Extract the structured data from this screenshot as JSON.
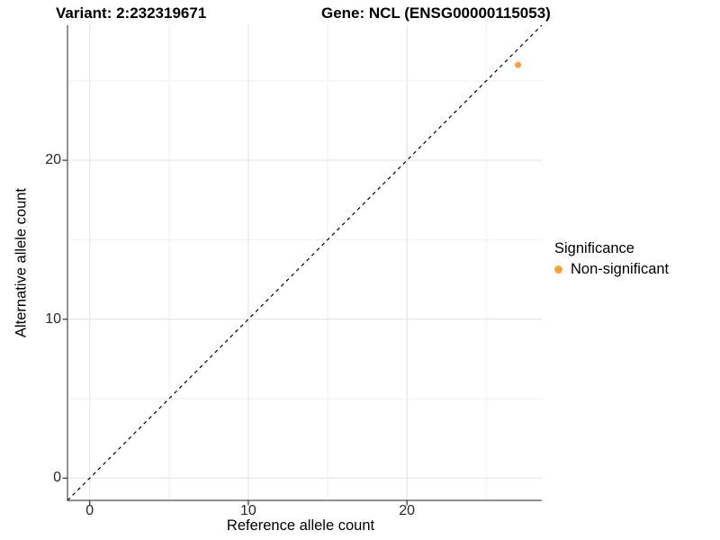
{
  "chart_data": {
    "type": "scatter",
    "title_variant": "Variant: 2:232319671",
    "title_gene": "Gene: NCL (ENSG00000115053)",
    "xlabel": "Reference allele count",
    "ylabel": "Alternative allele count",
    "xlim": [
      -1.4,
      28.5
    ],
    "ylim": [
      -1.4,
      28.5
    ],
    "x_ticks": [
      0,
      10,
      20
    ],
    "y_ticks": [
      0,
      10,
      20
    ],
    "x_minor_gridlines": [
      5,
      15,
      25
    ],
    "y_minor_gridlines": [
      5,
      15,
      25
    ],
    "grid": "major+minor",
    "abline": {
      "slope": 1,
      "intercept": 0,
      "style": "dashed"
    },
    "series": [
      {
        "name": "Non-significant",
        "color": "#FBA338",
        "points": [
          {
            "x": 27,
            "y": 26
          }
        ]
      }
    ],
    "legend": {
      "title": "Significance",
      "position": "right",
      "entries": [
        {
          "label": "Non-significant",
          "color": "#FBA338"
        }
      ]
    }
  },
  "colors": {
    "point_orange": "#FBA338",
    "grid_major": "#E4E4E4",
    "grid_minor": "#EFEFEF",
    "axis_line": "#4D4D4D",
    "tick_mark": "#333333",
    "abline": "#000000",
    "background": "#FFFFFF"
  }
}
